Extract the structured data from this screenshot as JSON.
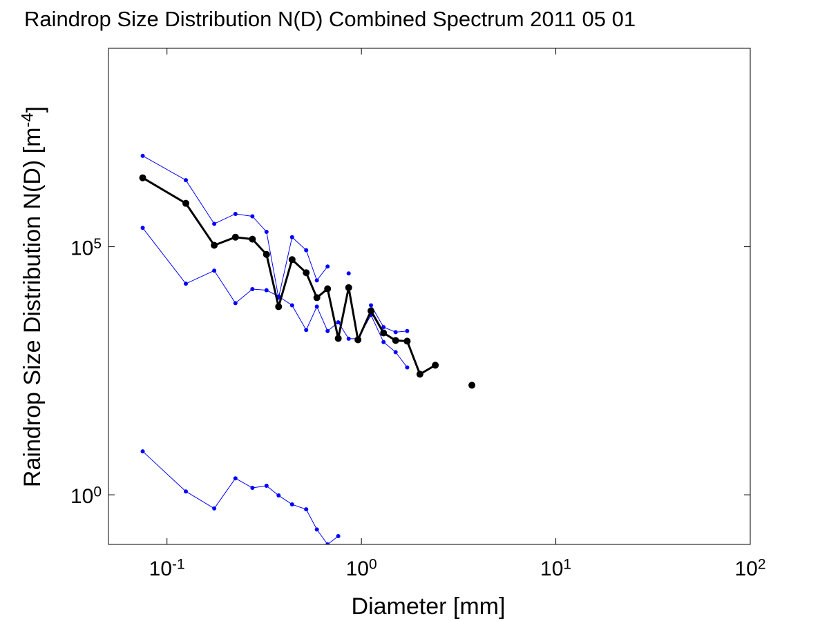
{
  "chart_data": {
    "type": "line",
    "title": "Raindrop Size Distribution N(D) Combined Spectrum 2011 05 01",
    "xlabel": "Diameter [mm]",
    "ylabel": "Raindrop Size Distribution N(D) [m^{-4}]",
    "xscale": "log",
    "yscale": "log",
    "grid": false,
    "xlim": [
      0.05,
      100
    ],
    "ylim": [
      0.1,
      1000000000
    ],
    "xticks": [
      {
        "value": 0.1,
        "label": "10^{-1}"
      },
      {
        "value": 1,
        "label": "10^{0}"
      },
      {
        "value": 10,
        "label": "10^{1}"
      },
      {
        "value": 100,
        "label": "10^{2}"
      }
    ],
    "yticks": [
      {
        "value": 1,
        "label": "10^{0}"
      },
      {
        "value": 100000,
        "label": "10^{5}"
      }
    ],
    "x": [
      0.075,
      0.125,
      0.175,
      0.225,
      0.275,
      0.325,
      0.375,
      0.44,
      0.52,
      0.59,
      0.67,
      0.76,
      0.86,
      0.96,
      1.12,
      1.3,
      1.5,
      1.72,
      2.0,
      2.4,
      3.0,
      3.7
    ],
    "series": [
      {
        "color": "#0000ff",
        "line_width": 1,
        "marker_size": 3,
        "values": [
          6800000,
          2200000,
          290000,
          460000,
          410000,
          200000,
          9400,
          156000,
          85000,
          21000,
          40000,
          null,
          29000,
          null,
          6600,
          2400,
          1900,
          2000,
          null,
          null,
          null,
          null
        ]
      },
      {
        "color": "#0000ff",
        "line_width": 1,
        "marker_size": 3,
        "values": [
          240000,
          18000,
          33000,
          7300,
          14000,
          13300,
          10000,
          6600,
          2100,
          6200,
          2000,
          3000,
          1400,
          1400,
          4200,
          1200,
          750,
          370,
          null,
          null,
          null,
          null
        ]
      },
      {
        "color": "#0000ff",
        "line_width": 1,
        "marker_size": 3,
        "values": [
          7.5,
          1.17,
          0.53,
          2.15,
          1.38,
          1.52,
          0.97,
          0.64,
          0.51,
          0.2,
          0.1,
          0.147,
          null,
          null,
          null,
          null,
          null,
          null,
          null,
          null,
          null,
          null
        ]
      },
      {
        "color": "#000000",
        "line_width": 3,
        "marker_size": 5,
        "values": [
          2450000,
          750000,
          107000,
          156000,
          142000,
          70000,
          6200,
          55000,
          30000,
          9400,
          14200,
          1420,
          15000,
          1330,
          5100,
          1830,
          1290,
          1250,
          270,
          410,
          null,
          162
        ]
      }
    ]
  }
}
